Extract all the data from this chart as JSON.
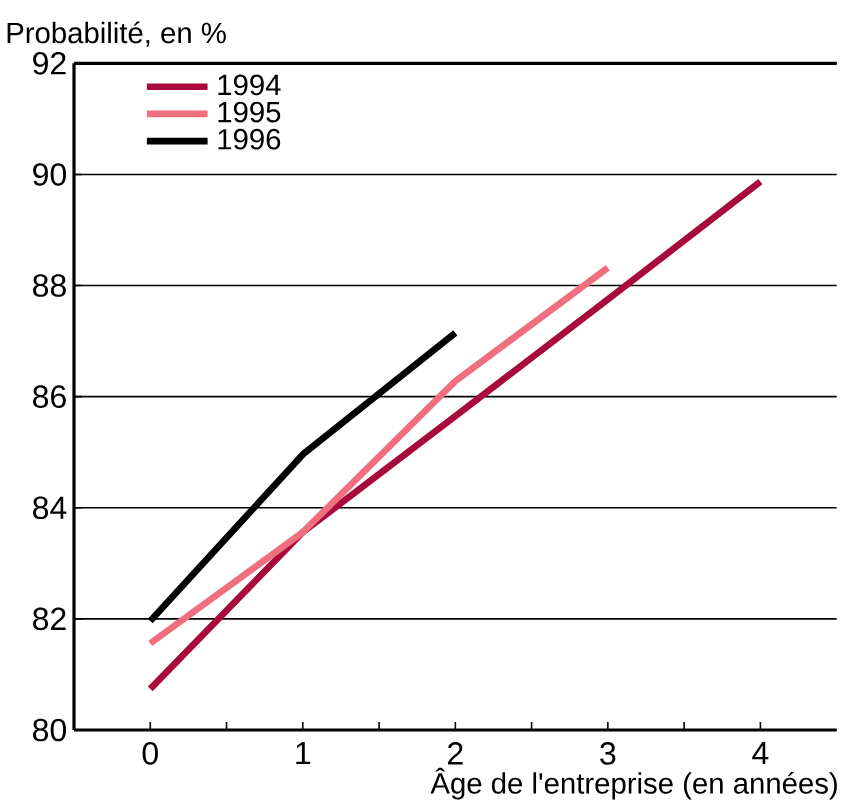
{
  "chart_data": {
    "type": "line",
    "ylabel": "Probabilité, en %",
    "xlabel": "Âge de l'entreprise (en années)",
    "x": [
      0,
      1,
      2,
      3,
      4
    ],
    "series": [
      {
        "name": "1994",
        "color": "#a80a3c",
        "values": [
          80.74,
          83.56,
          85.65,
          87.75,
          89.87
        ]
      },
      {
        "name": "1995",
        "color": "#ef6f7e",
        "values": [
          81.56,
          83.56,
          86.28,
          88.32,
          null
        ]
      },
      {
        "name": "1996",
        "color": "#000000",
        "values": [
          81.96,
          84.96,
          87.15,
          null,
          null
        ]
      }
    ],
    "xlim": [
      -0.5,
      4.5
    ],
    "xticks": [
      {
        "value": -0.5,
        "label": null
      },
      0,
      {
        "value": 0.5,
        "label": null
      },
      1,
      {
        "value": 1.5,
        "label": null
      },
      2,
      {
        "value": 2.5,
        "label": null
      },
      3,
      {
        "value": 3.5,
        "label": null
      },
      4
    ],
    "ylim": [
      80,
      92
    ],
    "yticks": [
      80,
      82,
      84,
      86,
      88,
      90,
      92
    ],
    "grid": "y",
    "legend": "top left",
    "marker": "none",
    "line_style": "solid"
  }
}
